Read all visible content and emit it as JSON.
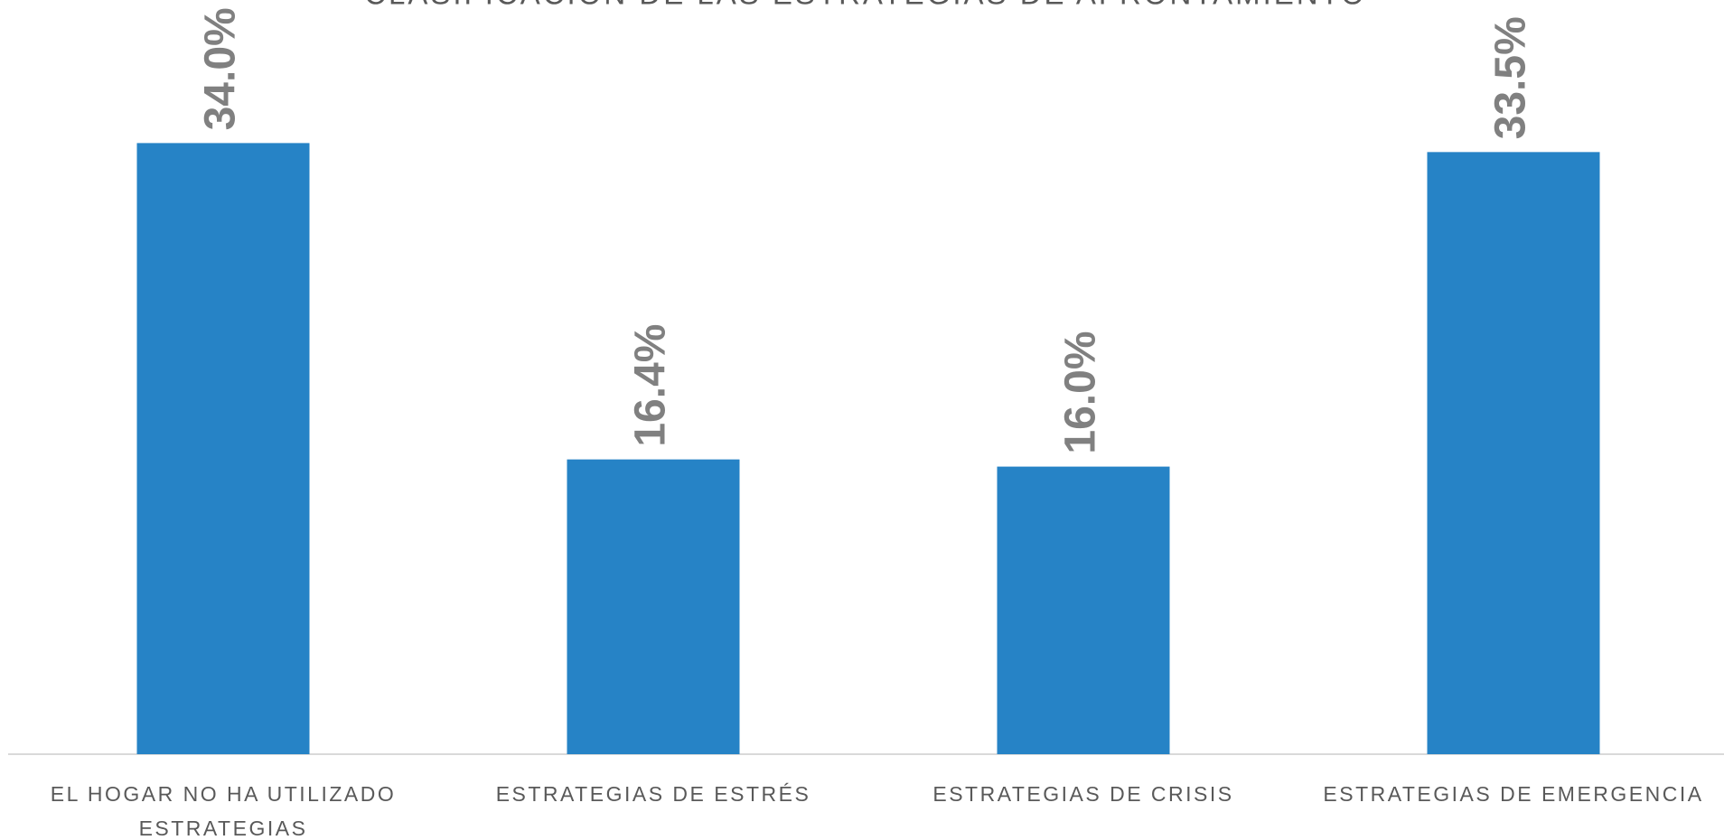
{
  "chart_data": {
    "type": "bar",
    "title": "CLASIFICACIÓN DE LAS ESTRATEGIAS DE AFRONTAMIENTO",
    "categories": [
      "EL HOGAR NO HA UTILIZADO ESTRATEGIAS",
      "ESTRATEGIAS DE ESTRÉS",
      "ESTRATEGIAS DE CRISIS",
      "ESTRATEGIAS DE EMERGENCIA"
    ],
    "values": [
      34.0,
      16.4,
      16.0,
      33.5
    ],
    "value_labels": [
      "34.0%",
      "16.4%",
      "16.0%",
      "33.5%"
    ],
    "color": "#2683c6"
  }
}
